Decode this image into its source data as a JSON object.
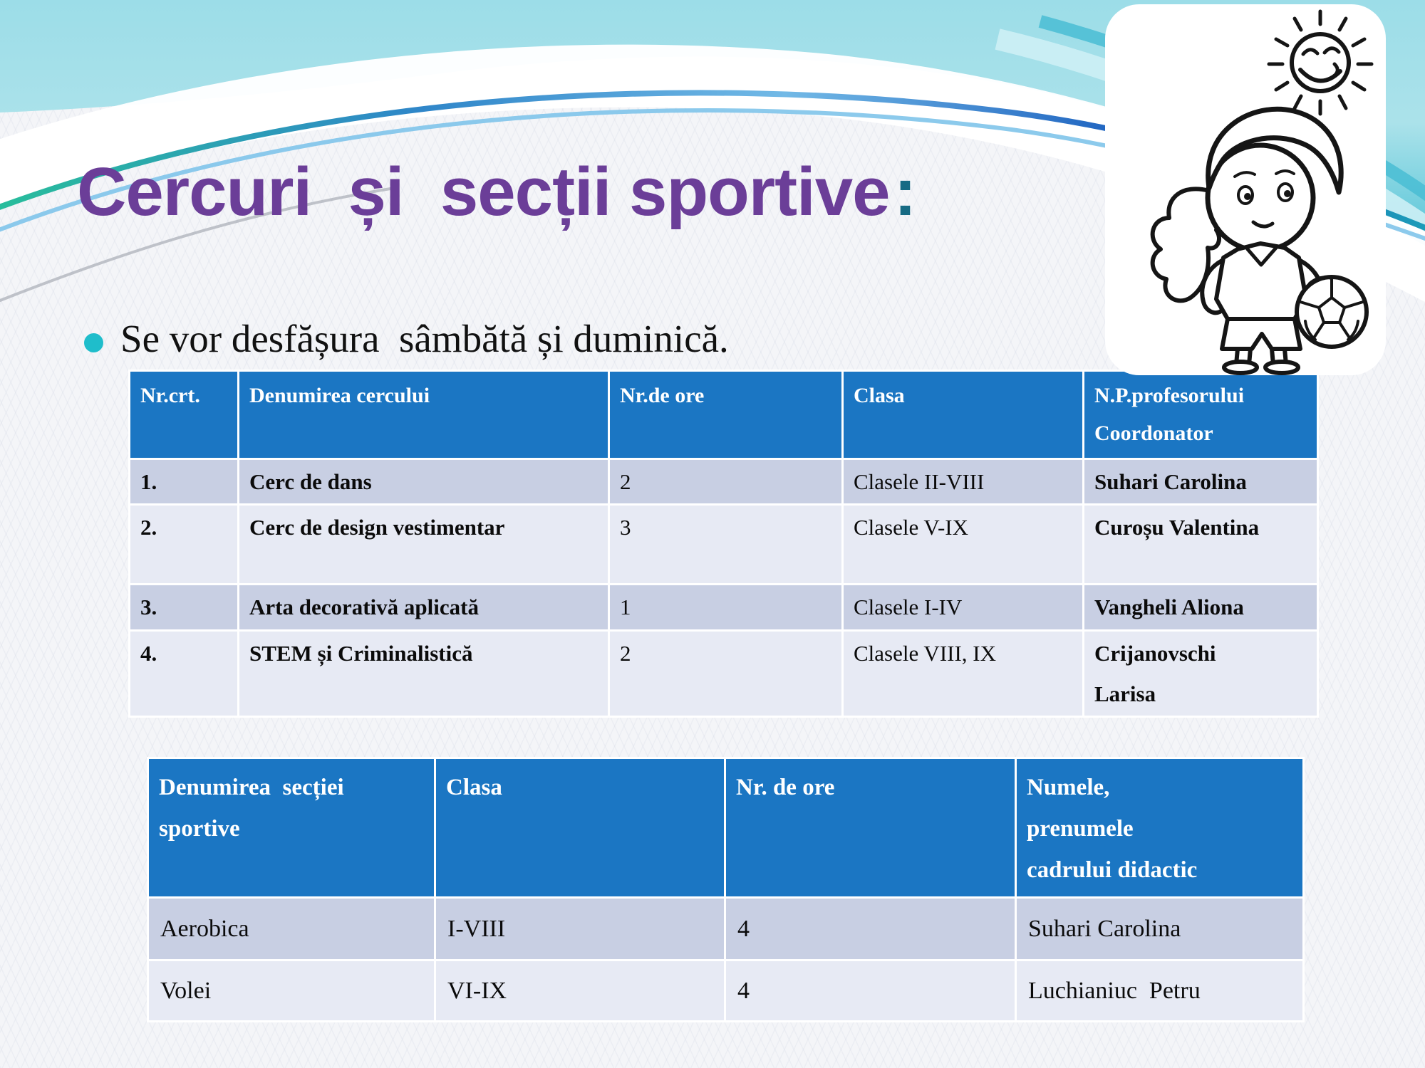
{
  "title": {
    "main": "Cercuri  și  secții sportive",
    "colon": ":"
  },
  "bullet": {
    "text": "Se vor desfășura  sâmbătă și duminică."
  },
  "colors": {
    "title_purple": "#6b3e98",
    "colon_teal": "#176b84",
    "bullet_teal": "#1fbdcb",
    "table_header_blue": "#1b76c3",
    "row_dark": "#c8cfe3",
    "row_light": "#e7eaf4",
    "wave_teal": "#7fd2de"
  },
  "illustration": {
    "label": "girl-with-ponytail-soccer-ball-and-smiling-sun"
  },
  "circles_table": {
    "headers": [
      "Nr.crt.",
      "Denumirea cercului",
      "Nr.de ore",
      "Clasa",
      "N.P.profesorului\nCoordonator"
    ],
    "rows": [
      [
        "1.",
        "Cerc de dans",
        "2",
        "Clasele II-VIII",
        "Suhari Carolina"
      ],
      [
        "2.",
        "Cerc de design vestimentar",
        "3",
        "Clasele V-IX",
        "Curoșu Valentina"
      ],
      [
        "3.",
        "Arta decorativă aplicată",
        "1",
        "Clasele I-IV",
        "Vangheli Aliona"
      ],
      [
        "4.",
        "STEM și Criminalistică",
        "2",
        "Clasele VIII, IX",
        "Crijanovschi\nLarisa"
      ]
    ]
  },
  "sections_table": {
    "headers": [
      "Denumirea  secției\nsportive",
      "Clasa",
      "Nr. de ore",
      "Numele,\nprenumele\ncadrului didactic"
    ],
    "rows": [
      [
        "Aerobica",
        "I-VIII",
        "4",
        "Suhari Carolina"
      ],
      [
        "Volei",
        "VI-IX",
        "4",
        "Luchianiuc  Petru"
      ]
    ]
  }
}
